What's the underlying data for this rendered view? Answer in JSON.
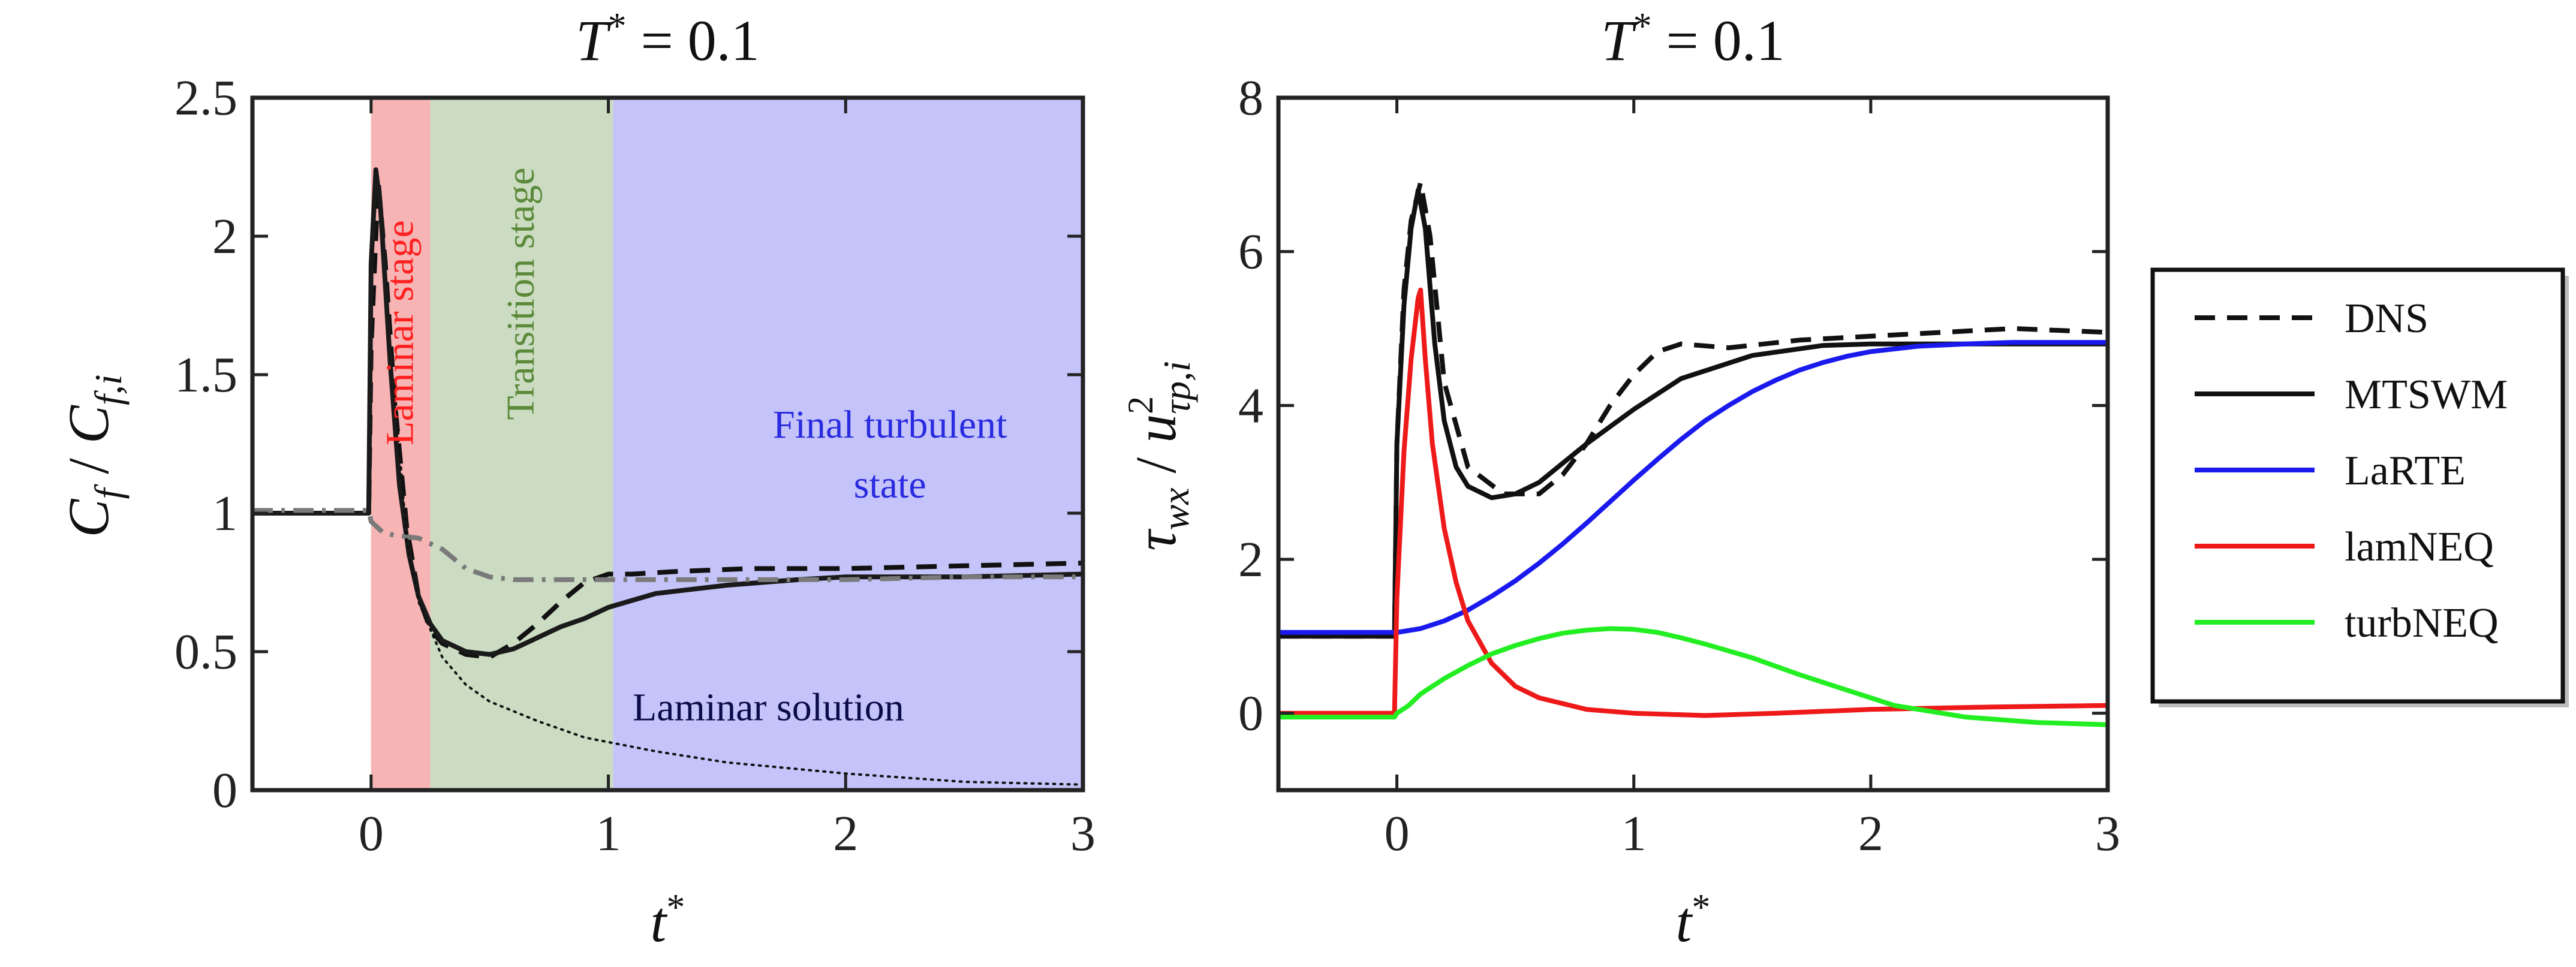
{
  "chart_data": [
    {
      "type": "line",
      "title": "T* = 0.1",
      "title_parts": {
        "symbol": "T",
        "sup": "*",
        "rest": " = 0.1"
      },
      "xlabel": "t*",
      "xlabel_parts": {
        "symbol": "t",
        "sup": "*"
      },
      "ylabel": "C_f / C_{f,i}",
      "ylabel_parts": {
        "c1": "C",
        "s1": "f",
        "sep": " / ",
        "c2": "C",
        "s2": "f,i"
      },
      "xlim": [
        -0.5,
        3
      ],
      "ylim": [
        0,
        2.5
      ],
      "xticks": [
        0,
        1,
        2,
        3
      ],
      "yticks": [
        0,
        0.5,
        1,
        1.5,
        2,
        2.5
      ],
      "ytick_labels": [
        "0",
        "0.5",
        "1",
        "1.5",
        "2",
        "2.5"
      ],
      "grid": false,
      "regions": [
        {
          "label": "Laminar stage",
          "x": [
            0,
            0.25
          ],
          "color": "#f7b4b4",
          "text_color": "#ff2020",
          "orientation": "vertical"
        },
        {
          "label": "Transition stage",
          "x": [
            0.25,
            1.02
          ],
          "color": "#cbdcc2",
          "text_color": "#5c8a3a",
          "orientation": "vertical"
        },
        {
          "label": "Final turbulent state",
          "label_lines": [
            "Final turbulent",
            "state"
          ],
          "x": [
            1.02,
            3
          ],
          "color": "#c4c4fa",
          "text_color": "#2a2ae0",
          "orientation": "horizontal"
        }
      ],
      "annotations": [
        {
          "text": "Laminar solution",
          "x": 1.75,
          "y": 0.2,
          "color": "#0b0b4a"
        }
      ],
      "series": [
        {
          "style": "dashed",
          "color": "#111111",
          "x": [
            -0.5,
            -0.01,
            0.0,
            0.03,
            0.06,
            0.1,
            0.15,
            0.2,
            0.25,
            0.3,
            0.4,
            0.5,
            0.6,
            0.7,
            0.8,
            0.9,
            1.0,
            1.1,
            1.3,
            1.6,
            2.0,
            2.5,
            3.0
          ],
          "y": [
            1.0,
            1.0,
            1.6,
            2.2,
            1.9,
            1.4,
            0.95,
            0.7,
            0.58,
            0.53,
            0.49,
            0.48,
            0.53,
            0.6,
            0.68,
            0.75,
            0.78,
            0.78,
            0.79,
            0.8,
            0.8,
            0.81,
            0.82
          ]
        },
        {
          "style": "solid",
          "color": "#1a1a1a",
          "x": [
            -0.5,
            -0.01,
            0.0,
            0.02,
            0.04,
            0.08,
            0.12,
            0.16,
            0.2,
            0.25,
            0.3,
            0.4,
            0.5,
            0.6,
            0.7,
            0.8,
            0.9,
            1.0,
            1.2,
            1.5,
            1.8,
            2.0,
            2.5,
            3.0
          ],
          "y": [
            1.0,
            1.0,
            1.9,
            2.24,
            2.1,
            1.55,
            1.1,
            0.85,
            0.7,
            0.6,
            0.54,
            0.5,
            0.49,
            0.51,
            0.55,
            0.59,
            0.62,
            0.66,
            0.71,
            0.74,
            0.76,
            0.77,
            0.77,
            0.78
          ]
        },
        {
          "style": "dashdot",
          "color": "#7a7a7a",
          "x": [
            -0.5,
            -0.01,
            0.0,
            0.05,
            0.1,
            0.2,
            0.3,
            0.4,
            0.5,
            0.6,
            0.8,
            1.0,
            1.5,
            2.0,
            2.5,
            3.0
          ],
          "y": [
            1.01,
            1.01,
            0.97,
            0.93,
            0.92,
            0.91,
            0.87,
            0.8,
            0.77,
            0.76,
            0.76,
            0.76,
            0.76,
            0.76,
            0.77,
            0.77
          ]
        },
        {
          "style": "dotted",
          "color": "#111111",
          "x": [
            0.1,
            0.15,
            0.2,
            0.3,
            0.4,
            0.5,
            0.7,
            0.9,
            1.2,
            1.5,
            2.0,
            2.5,
            3.0
          ],
          "y": [
            1.45,
            0.9,
            0.68,
            0.48,
            0.38,
            0.32,
            0.25,
            0.19,
            0.14,
            0.1,
            0.06,
            0.03,
            0.02
          ]
        }
      ]
    },
    {
      "type": "line",
      "title": "T* = 0.1",
      "title_parts": {
        "symbol": "T",
        "sup": "*",
        "rest": " = 0.1"
      },
      "xlabel": "t*",
      "xlabel_parts": {
        "symbol": "t",
        "sup": "*"
      },
      "ylabel": "τ_wx / u²_τp,i",
      "ylabel_parts": {
        "c1": "τ",
        "s1": "wx",
        "sep": " / ",
        "c2": "u",
        "sup2": "2",
        "s2": "τp,i"
      },
      "xlim": [
        -0.5,
        3
      ],
      "ylim": [
        -1,
        8
      ],
      "xticks": [
        0,
        1,
        2,
        3
      ],
      "yticks": [
        0,
        2,
        4,
        6,
        8
      ],
      "ytick_labels": [
        "0",
        "2",
        "4",
        "6",
        "8"
      ],
      "grid": false,
      "legend_position": "outside-right",
      "series": [
        {
          "name": "DNS",
          "style": "dashed",
          "color": "#111111",
          "x": [
            -0.5,
            -0.01,
            0.0,
            0.03,
            0.06,
            0.1,
            0.14,
            0.2,
            0.3,
            0.45,
            0.6,
            0.7,
            0.8,
            0.9,
            1.0,
            1.1,
            1.2,
            1.4,
            1.7,
            2.0,
            2.3,
            2.6,
            3.0
          ],
          "y": [
            1.0,
            1.0,
            3.5,
            5.5,
            6.4,
            6.9,
            6.2,
            4.3,
            3.2,
            2.85,
            2.85,
            3.1,
            3.5,
            4.0,
            4.4,
            4.7,
            4.8,
            4.75,
            4.85,
            4.9,
            4.95,
            5.0,
            4.95
          ]
        },
        {
          "name": "MTSWM",
          "style": "solid",
          "color": "#111111",
          "x": [
            -0.5,
            -0.01,
            0.0,
            0.03,
            0.06,
            0.09,
            0.12,
            0.16,
            0.2,
            0.25,
            0.3,
            0.4,
            0.5,
            0.6,
            0.8,
            1.0,
            1.2,
            1.5,
            1.8,
            2.0,
            2.5,
            3.0
          ],
          "y": [
            1.0,
            1.0,
            3.5,
            5.3,
            6.3,
            6.8,
            6.3,
            4.8,
            3.8,
            3.2,
            2.95,
            2.8,
            2.85,
            3.0,
            3.5,
            3.95,
            4.35,
            4.65,
            4.78,
            4.8,
            4.8,
            4.8
          ]
        },
        {
          "name": "LaRTE",
          "style": "solid",
          "color": "#1a1aee",
          "x": [
            -0.5,
            0.0,
            0.1,
            0.2,
            0.3,
            0.4,
            0.5,
            0.6,
            0.7,
            0.8,
            0.9,
            1.0,
            1.1,
            1.2,
            1.3,
            1.4,
            1.5,
            1.6,
            1.7,
            1.8,
            1.9,
            2.0,
            2.2,
            2.4,
            2.6,
            2.8,
            3.0
          ],
          "y": [
            1.05,
            1.05,
            1.1,
            1.2,
            1.34,
            1.52,
            1.72,
            1.95,
            2.2,
            2.47,
            2.75,
            3.03,
            3.3,
            3.56,
            3.8,
            4.0,
            4.18,
            4.33,
            4.46,
            4.56,
            4.64,
            4.7,
            4.77,
            4.8,
            4.82,
            4.82,
            4.82
          ]
        },
        {
          "name": "lamNEQ",
          "style": "solid",
          "color": "#ee1a1a",
          "x": [
            -0.5,
            -0.01,
            0.0,
            0.03,
            0.06,
            0.09,
            0.1,
            0.12,
            0.15,
            0.2,
            0.25,
            0.3,
            0.4,
            0.5,
            0.6,
            0.8,
            1.0,
            1.3,
            1.6,
            2.0,
            2.5,
            3.0
          ],
          "y": [
            0.0,
            0.0,
            1.5,
            3.4,
            4.6,
            5.4,
            5.5,
            4.6,
            3.5,
            2.4,
            1.7,
            1.2,
            0.65,
            0.35,
            0.2,
            0.05,
            0.0,
            -0.03,
            0.0,
            0.05,
            0.08,
            0.1
          ]
        },
        {
          "name": "turbNEQ",
          "style": "solid",
          "color": "#22ee22",
          "x": [
            -0.5,
            -0.01,
            0.0,
            0.05,
            0.1,
            0.2,
            0.3,
            0.4,
            0.5,
            0.6,
            0.7,
            0.8,
            0.9,
            1.0,
            1.1,
            1.2,
            1.3,
            1.5,
            1.7,
            1.9,
            2.1,
            2.4,
            2.7,
            3.0
          ],
          "y": [
            -0.05,
            -0.05,
            0.0,
            0.1,
            0.25,
            0.45,
            0.62,
            0.77,
            0.88,
            0.97,
            1.04,
            1.08,
            1.1,
            1.09,
            1.05,
            0.98,
            0.9,
            0.72,
            0.5,
            0.3,
            0.1,
            -0.05,
            -0.12,
            -0.15
          ]
        }
      ]
    }
  ]
}
